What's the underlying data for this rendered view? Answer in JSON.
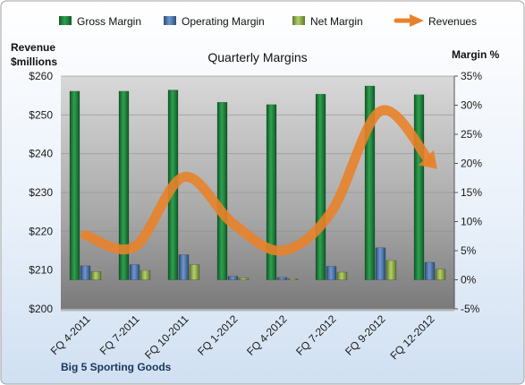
{
  "chart_data": {
    "type": "bar",
    "title": "Quarterly Margins",
    "source": "Big 5 Sporting Goods",
    "categories": [
      "FQ 4-2011",
      "FQ 7-2011",
      "FQ 10-2011",
      "FQ 1-2012",
      "FQ 4-2012",
      "FQ 7-2012",
      "FQ 9-2012",
      "FQ 12-2012"
    ],
    "left_axis": {
      "label_line1": "Revenue",
      "label_line2": "$millions",
      "min": 200,
      "max": 260,
      "step": 10,
      "tick_labels": [
        "$200",
        "$210",
        "$220",
        "$230",
        "$240",
        "$250",
        "$260"
      ]
    },
    "right_axis": {
      "label": "Margin %",
      "min": -5,
      "max": 35,
      "step": 5,
      "tick_labels": [
        "-5%",
        "0%",
        "5%",
        "10%",
        "15%",
        "20%",
        "25%",
        "30%",
        "35%"
      ]
    },
    "series": [
      {
        "name": "Gross Margin",
        "type": "bar",
        "axis": "right",
        "color": "#1e7f3c",
        "values": [
          32.4,
          32.4,
          32.6,
          30.5,
          30.1,
          31.9,
          33.3,
          31.8
        ]
      },
      {
        "name": "Operating Margin",
        "type": "bar",
        "axis": "right",
        "color": "#4f81bd",
        "values": [
          2.4,
          2.6,
          4.3,
          0.6,
          0.4,
          2.3,
          5.5,
          3.0
        ]
      },
      {
        "name": "Net Margin",
        "type": "bar",
        "axis": "right",
        "color": "#9bbb59",
        "values": [
          1.4,
          1.6,
          2.6,
          0.3,
          0.2,
          1.3,
          3.3,
          1.8
        ]
      },
      {
        "name": "Revenues",
        "type": "line",
        "axis": "left",
        "color": "#e8822a",
        "values": [
          219,
          216,
          234,
          222,
          215,
          225,
          251,
          238
        ]
      }
    ],
    "legend_position": "top",
    "grid": true
  }
}
